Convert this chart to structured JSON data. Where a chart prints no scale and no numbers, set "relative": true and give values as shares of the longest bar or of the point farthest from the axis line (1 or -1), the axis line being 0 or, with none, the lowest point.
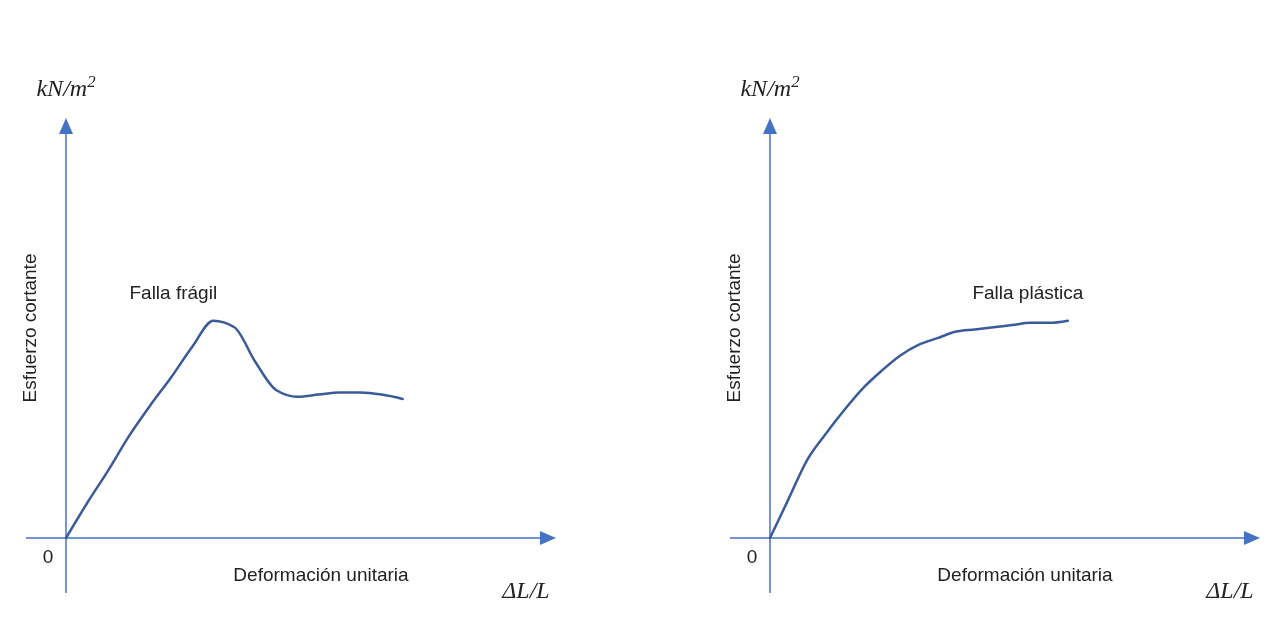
{
  "chart_data": [
    {
      "type": "line",
      "relative": true,
      "xlabel": "Deformación unitaria",
      "ylabel": "Esfuerzo cortante",
      "annotations": [
        "0",
        "kN/m$^{2}$",
        "ΔL/L"
      ],
      "categories": [
        null,
        null,
        null,
        null,
        null,
        null,
        null,
        null,
        null,
        null,
        null,
        null,
        null,
        null,
        null,
        null,
        null,
        null,
        null,
        null,
        null,
        null,
        null
      ],
      "series": [
        {
          "name": "Falla frágil",
          "color": "#3a5a9c",
          "values": [
            0,
            0.16,
            0.31,
            0.47,
            0.61,
            0.74,
            0.88,
            1,
            0.97,
            0.81,
            0.68,
            0.65,
            0.66,
            0.67,
            0.67,
            0.66,
            0.64,
            null,
            null,
            null,
            null,
            null,
            null
          ]
        }
      ]
    },
    {
      "type": "line",
      "relative": true,
      "xlabel": "Deformación unitaria",
      "ylabel": "Esfuerzo cortante",
      "annotations": [
        "0",
        "kN/m$^{2}$",
        "ΔL/L"
      ],
      "categories": [
        null,
        null,
        null,
        null,
        null,
        null,
        null,
        null,
        null,
        null,
        null,
        null,
        null,
        null,
        null,
        null,
        null,
        null,
        null,
        null,
        null,
        null,
        null,
        null,
        null,
        null
      ],
      "series": [
        {
          "name": "Falla plástica",
          "color": "#3a5a9c",
          "values": [
            0,
            0.18,
            0.36,
            0.48,
            0.59,
            0.69,
            0.77,
            0.84,
            0.89,
            0.92,
            0.95,
            0.96,
            0.97,
            0.98,
            0.99,
            0.99,
            1,
            null,
            null,
            null,
            null,
            null,
            null,
            null,
            null,
            null
          ]
        }
      ]
    }
  ]
}
